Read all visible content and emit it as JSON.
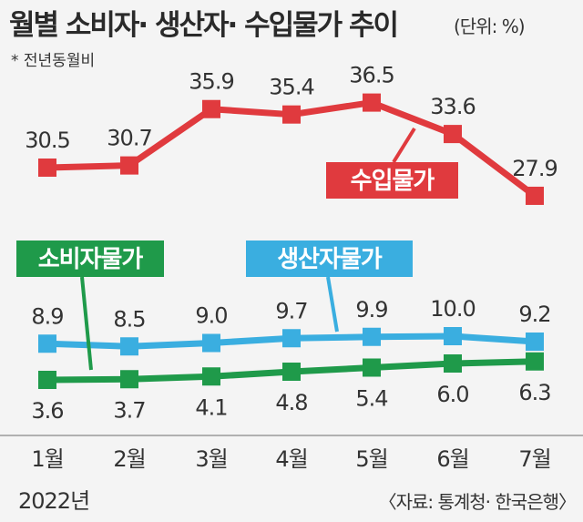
{
  "header": {
    "title": "월별 소비자· 생산자· 수입물가 추이",
    "unit": "(단위: %)",
    "note": "* 전년동월비"
  },
  "footer": {
    "year": "2022년",
    "source": "〈자료: 통계청· 한국은행〉"
  },
  "colors": {
    "import": "#e03a3e",
    "producer": "#3aaee0",
    "consumer": "#1f9a4a",
    "label_text": "#ffffff"
  },
  "chart_data": {
    "type": "line",
    "categories": [
      "1월",
      "2월",
      "3월",
      "4월",
      "5월",
      "6월",
      "7월"
    ],
    "series": [
      {
        "key": "import",
        "name": "수입물가",
        "values": [
          30.5,
          30.7,
          35.9,
          35.4,
          36.5,
          33.6,
          27.9
        ],
        "labels": [
          "30.5",
          "30.7",
          "35.9",
          "35.4",
          "36.5",
          "33.6",
          "27.9"
        ]
      },
      {
        "key": "producer",
        "name": "생산자물가",
        "values": [
          8.9,
          8.5,
          9.0,
          9.7,
          9.9,
          10.0,
          9.2
        ],
        "labels": [
          "8.9",
          "8.5",
          "9.0",
          "9.7",
          "9.9",
          "10.0",
          "9.2"
        ]
      },
      {
        "key": "consumer",
        "name": "소비자물가",
        "values": [
          3.6,
          3.7,
          4.1,
          4.8,
          5.4,
          6.0,
          6.3
        ],
        "labels": [
          "3.6",
          "3.7",
          "4.1",
          "4.8",
          "5.4",
          "6.0",
          "6.3"
        ]
      }
    ],
    "grid": false,
    "legend": "callout labels"
  }
}
